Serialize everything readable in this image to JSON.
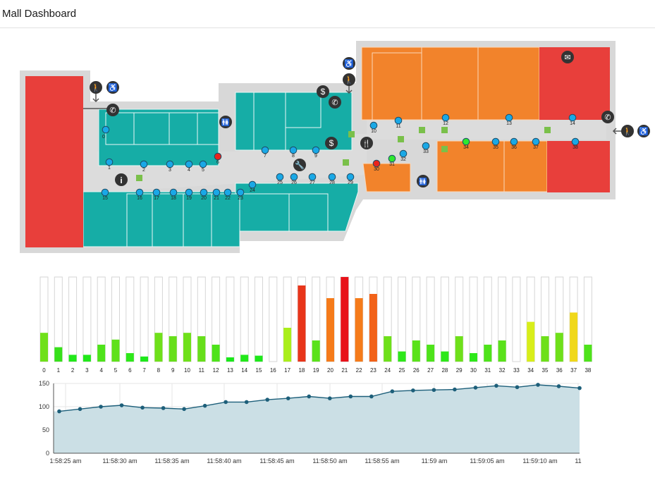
{
  "header": {
    "title": "Mall Dashboard"
  },
  "colors": {
    "store_teal": "#16ada6",
    "store_orange": "#f2832b",
    "store_red": "#e83f3b",
    "corridor": "#dcdcdc",
    "sensor_normal": "#1aa8e6",
    "sensor_alert": "#e8231c",
    "sensor_ok": "#2ee82e",
    "area_fill": "#cbdfe5",
    "line": "#1d5f7a"
  },
  "map": {
    "sensors": [
      {
        "id": "0",
        "state": "normal"
      },
      {
        "id": "1",
        "state": "normal"
      },
      {
        "id": "2",
        "state": "normal"
      },
      {
        "id": "3",
        "state": "normal"
      },
      {
        "id": "4",
        "state": "normal"
      },
      {
        "id": "5",
        "state": "normal"
      },
      {
        "id": "6",
        "state": "alert"
      },
      {
        "id": "7",
        "state": "normal"
      },
      {
        "id": "8",
        "state": "normal"
      },
      {
        "id": "9",
        "state": "normal"
      },
      {
        "id": "10",
        "state": "normal"
      },
      {
        "id": "11",
        "state": "normal"
      },
      {
        "id": "12",
        "state": "normal"
      },
      {
        "id": "13",
        "state": "normal"
      },
      {
        "id": "14",
        "state": "normal"
      },
      {
        "id": "15",
        "state": "normal"
      },
      {
        "id": "16",
        "state": "normal"
      },
      {
        "id": "17",
        "state": "normal"
      },
      {
        "id": "18",
        "state": "normal"
      },
      {
        "id": "19",
        "state": "normal"
      },
      {
        "id": "20",
        "state": "normal"
      },
      {
        "id": "21",
        "state": "normal"
      },
      {
        "id": "22",
        "state": "normal"
      },
      {
        "id": "23",
        "state": "normal"
      },
      {
        "id": "24",
        "state": "normal"
      },
      {
        "id": "25",
        "state": "normal"
      },
      {
        "id": "26",
        "state": "normal"
      },
      {
        "id": "27",
        "state": "normal"
      },
      {
        "id": "28",
        "state": "normal"
      },
      {
        "id": "29",
        "state": "normal"
      },
      {
        "id": "30",
        "state": "alert"
      },
      {
        "id": "31",
        "state": "ok"
      },
      {
        "id": "32",
        "state": "normal"
      },
      {
        "id": "33",
        "state": "normal"
      },
      {
        "id": "34",
        "state": "ok"
      },
      {
        "id": "35",
        "state": "normal"
      },
      {
        "id": "36",
        "state": "normal"
      },
      {
        "id": "37",
        "state": "normal"
      },
      {
        "id": "38",
        "state": "normal"
      }
    ],
    "icons": [
      "walk-icon",
      "wheelchair-icon",
      "phone-icon",
      "restroom-icon",
      "dollar-icon",
      "restaurant-icon",
      "info-icon",
      "wrench-icon",
      "mail-icon",
      "entrance-arrow-icon"
    ]
  },
  "chart_data": [
    {
      "type": "bar",
      "categories": [
        "0",
        "1",
        "2",
        "3",
        "4",
        "5",
        "6",
        "7",
        "8",
        "9",
        "10",
        "11",
        "12",
        "13",
        "14",
        "15",
        "16",
        "17",
        "18",
        "19",
        "20",
        "21",
        "22",
        "23",
        "24",
        "25",
        "26",
        "27",
        "28",
        "29",
        "30",
        "31",
        "32",
        "33",
        "34",
        "35",
        "36",
        "37",
        "38"
      ],
      "values": [
        34,
        17,
        8,
        8,
        20,
        26,
        10,
        6,
        34,
        30,
        34,
        30,
        20,
        5,
        8,
        7,
        0,
        40,
        90,
        25,
        75,
        100,
        75,
        80,
        30,
        12,
        25,
        20,
        12,
        30,
        10,
        20,
        25,
        0,
        47,
        30,
        34,
        58,
        20
      ],
      "colors": [
        "#6fe01a",
        "#37e01a",
        "#22e81a",
        "#22e81a",
        "#4ee31a",
        "#5fe11a",
        "#2ee81a",
        "#1de81a",
        "#6fe01a",
        "#67df1a",
        "#6fe01a",
        "#67df1a",
        "#4ee31a",
        "#1ae81a",
        "#22e81a",
        "#1ee81a",
        "#1ae81a",
        "#aaee1a",
        "#e8351a",
        "#5ae21a",
        "#f57b1a",
        "#e8121a",
        "#f57b1a",
        "#f26218",
        "#6ee01a",
        "#2ee81a",
        "#5ae21a",
        "#4ee31a",
        "#2ee81a",
        "#6ee01a",
        "#2ee81a",
        "#4ee31a",
        "#5ae21a",
        "#1ae81a",
        "#d8ee1a",
        "#6ee01a",
        "#6fe01a",
        "#f0d81a",
        "#4ee31a"
      ],
      "ylim": [
        0,
        100
      ]
    },
    {
      "type": "area",
      "x": [
        "11:58:24 am",
        "11:58:26 am",
        "11:58:28 am",
        "11:58:30 am",
        "11:58:32 am",
        "11:58:34 am",
        "11:58:36 am",
        "11:58:38 am",
        "11:58:40 am",
        "11:58:42 am",
        "11:58:44 am",
        "11:58:46 am",
        "11:58:48 am",
        "11:58:50 am",
        "11:58:52 am",
        "11:58:54 am",
        "11:58:56 am",
        "11:58:58 am",
        "11:59:00 am",
        "11:59:02 am",
        "11:59:04 am",
        "11:59:06 am",
        "11:59:08 am",
        "11:59:10 am",
        "11:59:12 am",
        "11:59:14 am"
      ],
      "values": [
        90,
        95,
        100,
        103,
        98,
        97,
        95,
        102,
        110,
        110,
        115,
        118,
        122,
        118,
        122,
        122,
        133,
        135,
        136,
        137,
        141,
        145,
        142,
        147,
        144,
        140
      ],
      "tick_labels": [
        "1:58:25 am",
        "11:58:30 am",
        "11:58:35 am",
        "11:58:40 am",
        "11:58:45 am",
        "11:58:50 am",
        "11:58:55 am",
        "11:59 am",
        "11:59:05 am",
        "11:59:10 am",
        "11"
      ],
      "y_ticks": [
        "0",
        "50",
        "100",
        "150"
      ],
      "ylim": [
        0,
        150
      ]
    }
  ]
}
